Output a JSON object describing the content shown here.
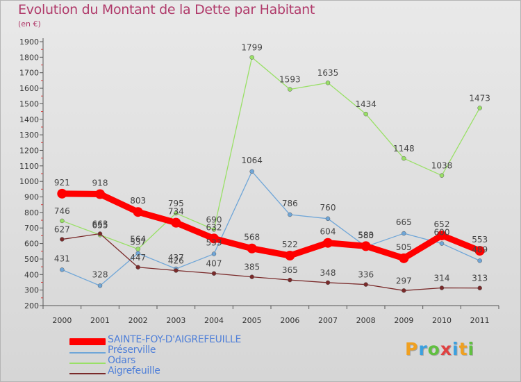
{
  "title": "Evolution du Montant de la Dette par Habitant",
  "subtitle": "(en €)",
  "logo": {
    "text": "Proxiti",
    "colors": [
      "#f0a020",
      "#3aa0e0",
      "#60c040",
      "#e04040",
      "#3aa0e0",
      "#f0a020",
      "#60c040"
    ]
  },
  "chart_data": {
    "type": "line",
    "x": [
      "2000",
      "2001",
      "2002",
      "2003",
      "2004",
      "2005",
      "2006",
      "2007",
      "2008",
      "2009",
      "2010",
      "2011"
    ],
    "ylim": [
      200,
      1900
    ],
    "yticks": [
      200,
      300,
      400,
      500,
      600,
      700,
      800,
      900,
      1000,
      1100,
      1200,
      1300,
      1400,
      1500,
      1600,
      1700,
      1800,
      1900
    ],
    "grid": false,
    "legend_position": "bottom-left",
    "series": [
      {
        "name": "SAINTE-FOY-D'AIGREFEUILLE",
        "color": "#ff0000",
        "values": [
          921,
          918,
          803,
          734,
          632,
          568,
          522,
          604,
          583,
          505,
          652,
          553
        ],
        "labels": [
          "921",
          "918",
          "803",
          "734",
          "632",
          "568",
          "522",
          "604",
          "583",
          "505",
          "652",
          "553"
        ]
      },
      {
        "name": "Préserville",
        "color": "#6fa6d8",
        "values": [
          431,
          328,
          537,
          437,
          533,
          1064,
          786,
          760,
          580,
          665,
          600,
          489
        ],
        "labels": [
          "431",
          "328",
          "537",
          "437",
          "533",
          "1064",
          "786",
          "760",
          "580",
          "665",
          "600",
          "489"
        ]
      },
      {
        "name": "Odars",
        "color": "#99e066",
        "values": [
          746,
          655,
          564,
          795,
          690,
          1799,
          1593,
          1635,
          1434,
          1148,
          1038,
          1473
        ],
        "labels": [
          "746",
          "655",
          "564",
          "795",
          "690",
          "1799",
          "1593",
          "1635",
          "1434",
          "1148",
          "1038",
          "1473"
        ]
      },
      {
        "name": "Aigrefeuille",
        "color": "#7a2a2a",
        "values": [
          627,
          663,
          447,
          426,
          407,
          385,
          365,
          348,
          336,
          297,
          314,
          313
        ],
        "labels": [
          "627",
          "663",
          "447",
          "426",
          "407",
          "385",
          "365",
          "348",
          "336",
          "297",
          "314",
          "313"
        ]
      }
    ]
  }
}
